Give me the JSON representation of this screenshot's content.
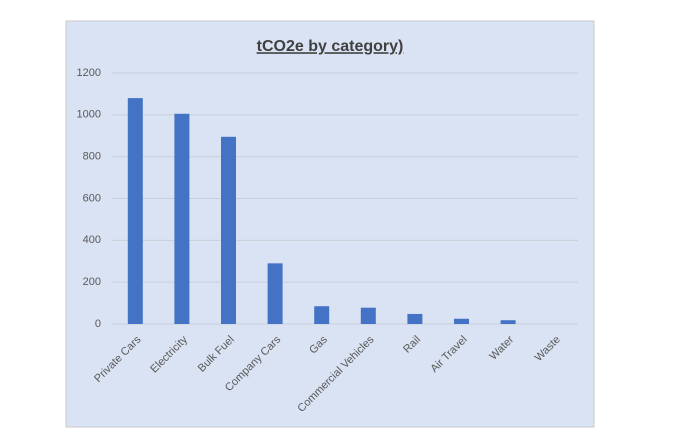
{
  "chart_data": {
    "type": "bar",
    "title": "tCO2e by category)",
    "categories": [
      "Private Cars",
      "Electricity",
      "Bulk Fuel",
      "Company Cars",
      "Gas",
      "Commercial Vehicles",
      "Rail",
      "Air Travel",
      "Water",
      "Waste"
    ],
    "values": [
      1080,
      1005,
      895,
      290,
      85,
      78,
      48,
      25,
      18,
      0
    ],
    "color": "#4472c4",
    "ylim": [
      0,
      1200
    ],
    "yticks": [
      0,
      200,
      400,
      600,
      800,
      1000,
      1200
    ],
    "grid": true
  }
}
